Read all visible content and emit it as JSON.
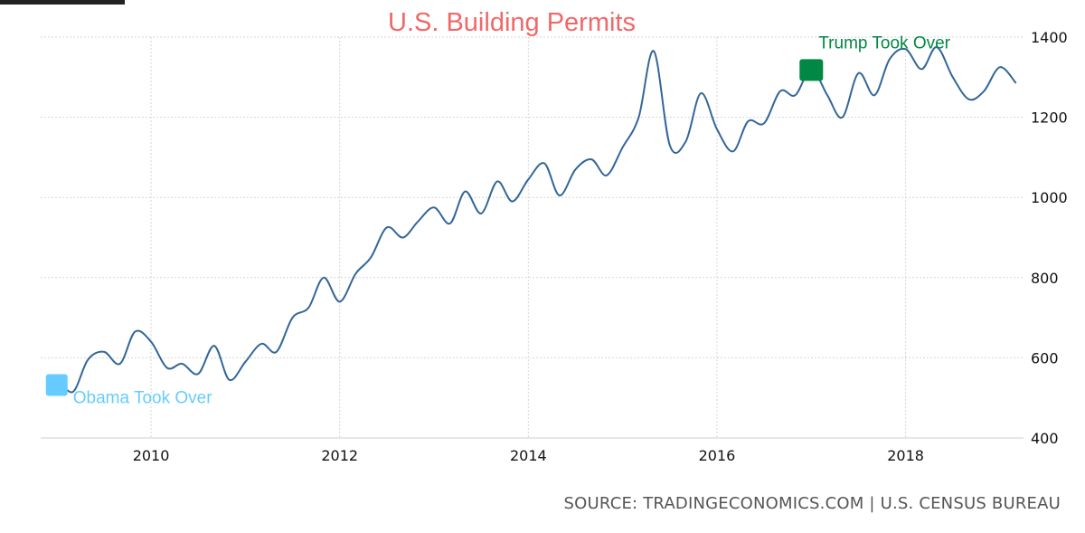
{
  "chart_data": {
    "type": "line",
    "title": "U.S. Building Permits",
    "source": "SOURCE: TRADINGECONOMICS.COM | U.S. CENSUS BUREAU",
    "xlabel": "",
    "ylabel": "",
    "xlim": [
      2008.83,
      2019.25
    ],
    "ylim": [
      400,
      1400
    ],
    "x_ticks": [
      2010,
      2012,
      2014,
      2016,
      2018
    ],
    "x_tick_labels": [
      "2010",
      "2012",
      "2014",
      "2016",
      "2018"
    ],
    "y_ticks": [
      400,
      600,
      800,
      1000,
      1200,
      1400
    ],
    "y_tick_labels": [
      "400",
      "600",
      "800",
      "1000",
      "1200",
      "1400"
    ],
    "grid": true,
    "series": [
      {
        "color": "#336699",
        "x": [
          2009.0,
          2009.17,
          2009.33,
          2009.5,
          2009.67,
          2009.83,
          2010.0,
          2010.17,
          2010.33,
          2010.5,
          2010.67,
          2010.83,
          2011.0,
          2011.17,
          2011.33,
          2011.5,
          2011.67,
          2011.83,
          2012.0,
          2012.17,
          2012.33,
          2012.5,
          2012.67,
          2012.83,
          2013.0,
          2013.17,
          2013.33,
          2013.5,
          2013.67,
          2013.83,
          2014.0,
          2014.17,
          2014.33,
          2014.5,
          2014.67,
          2014.83,
          2015.0,
          2015.17,
          2015.33,
          2015.5,
          2015.67,
          2015.83,
          2016.0,
          2016.17,
          2016.33,
          2016.5,
          2016.67,
          2016.83,
          2017.0,
          2017.17,
          2017.33,
          2017.5,
          2017.67,
          2017.83,
          2018.0,
          2018.17,
          2018.33,
          2018.5,
          2018.67,
          2018.83,
          2019.0,
          2019.17
        ],
        "y": [
          553,
          515,
          595,
          615,
          585,
          665,
          640,
          575,
          585,
          560,
          630,
          545,
          590,
          635,
          615,
          700,
          725,
          800,
          740,
          810,
          850,
          925,
          900,
          940,
          975,
          935,
          1015,
          960,
          1040,
          990,
          1045,
          1085,
          1005,
          1070,
          1095,
          1055,
          1125,
          1200,
          1365,
          1130,
          1140,
          1260,
          1170,
          1115,
          1190,
          1185,
          1265,
          1255,
          1320,
          1255,
          1200,
          1310,
          1255,
          1345,
          1370,
          1320,
          1375,
          1300,
          1245,
          1265,
          1325,
          1285
        ]
      }
    ],
    "annotations": [
      {
        "text": "Obama Took Over",
        "x": 2009.0,
        "y": 532,
        "color": "#66ccff"
      },
      {
        "text": "Trump Took Over",
        "x": 2017.0,
        "y": 1318,
        "color": "#008844"
      }
    ]
  }
}
